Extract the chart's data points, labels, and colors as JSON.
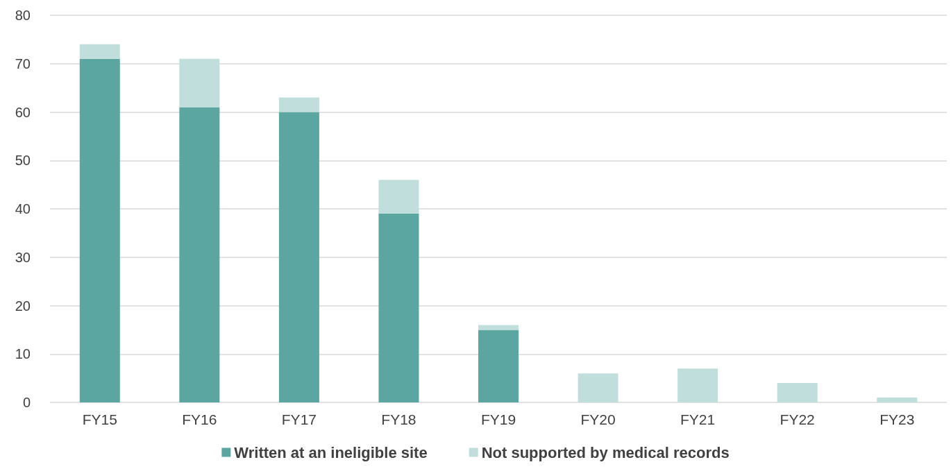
{
  "chart_data": {
    "type": "bar",
    "stacked": true,
    "categories": [
      "FY15",
      "FY16",
      "FY17",
      "FY18",
      "FY19",
      "FY20",
      "FY21",
      "FY22",
      "FY23"
    ],
    "series": [
      {
        "name": "Written at an ineligible site",
        "color": "#5ba6a0",
        "values": [
          71,
          61,
          60,
          39,
          15,
          0,
          0,
          0,
          0
        ]
      },
      {
        "name": "Not supported by medical records",
        "color": "#c0dfdc",
        "values": [
          3,
          10,
          3,
          7,
          1,
          6,
          7,
          4,
          1
        ]
      }
    ],
    "ylim": [
      0,
      80
    ],
    "yticks": [
      0,
      10,
      20,
      30,
      40,
      50,
      60,
      70,
      80
    ],
    "grid": "y",
    "legend": "bottom"
  }
}
